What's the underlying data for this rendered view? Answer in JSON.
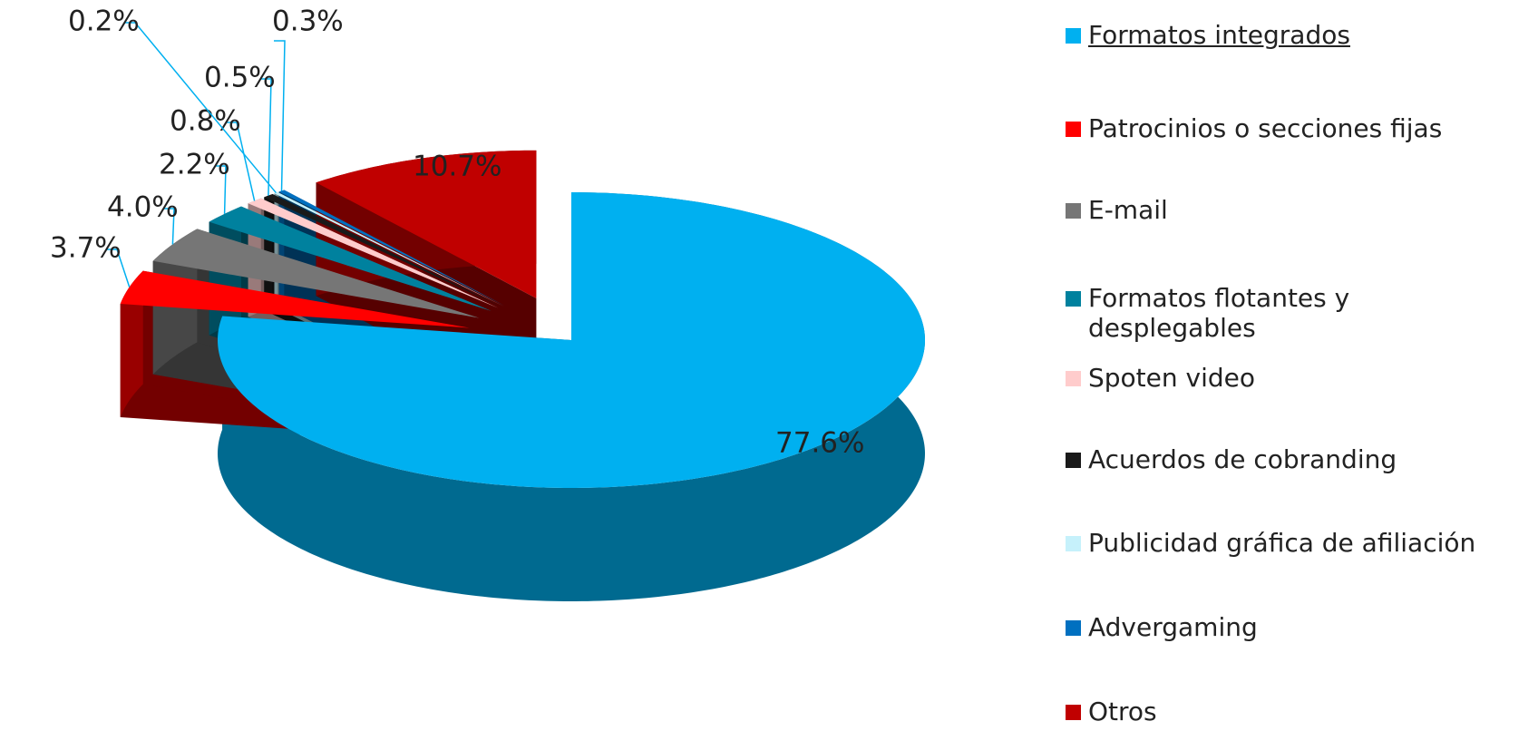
{
  "chart_data": {
    "type": "pie",
    "categories": [
      "Formatos integrados",
      "Patrocinios o secciones fijas",
      "E-mail",
      "Formatos flotantes y desplegables",
      "Spoten video",
      "Acuerdos de cobranding",
      "Publicidad gráfica de afiliación",
      "Advergaming",
      "Otros"
    ],
    "values": [
      77.6,
      3.7,
      4.0,
      2.2,
      0.8,
      0.5,
      0.2,
      0.3,
      10.7
    ],
    "value_labels": [
      "77.6%",
      "3.7%",
      "4.0%",
      "2.2%",
      "0.8%",
      "0.5%",
      "0.2%",
      "0.3%",
      "10.7%"
    ],
    "colors": [
      "#00b0f0",
      "#ff0000",
      "#767676",
      "#00819e",
      "#ffcccc",
      "#1a1a1a",
      "#c6f1fb",
      "#0070c0",
      "#c00000"
    ],
    "legend": "right"
  }
}
